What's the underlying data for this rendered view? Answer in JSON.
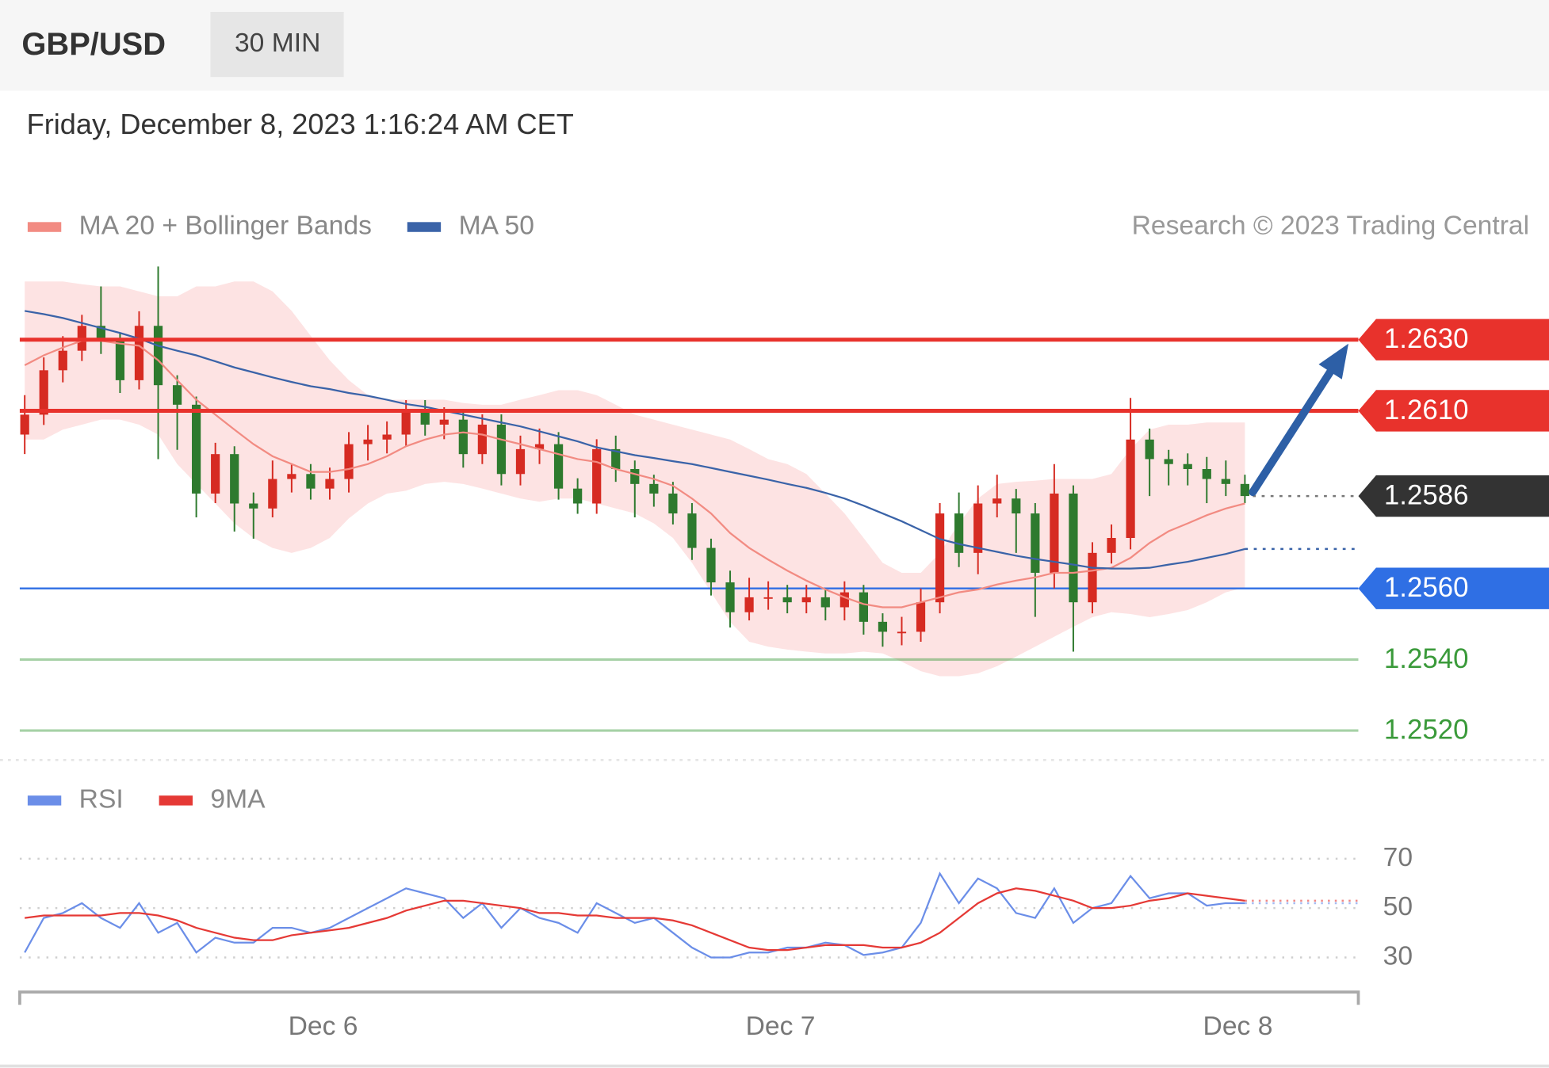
{
  "header": {
    "symbol": "GBP/USD",
    "interval": "30 MIN",
    "timestamp": "Friday, December 8, 2023 1:16:24 AM CET"
  },
  "chart_data": [
    {
      "type": "candlestick",
      "credit": "Research © 2023 Trading Central",
      "xlim": [
        -0.26,
        69.95
      ],
      "ylim": [
        1.25117,
        1.26506
      ],
      "up_color": "#d62b22",
      "down_color": "#2e7a2e",
      "band_color": "#fde3e3",
      "arrow_color": "#2d5fa6",
      "open": [
        1.26033,
        1.26089,
        1.26214,
        1.26269,
        1.26339,
        1.26297,
        1.26186,
        1.26339,
        1.26172,
        1.26117,
        1.25867,
        1.25978,
        1.25839,
        1.25825,
        1.25908,
        1.25922,
        1.25881,
        1.25908,
        1.26006,
        1.26019,
        1.26033,
        1.26103,
        1.26061,
        1.26075,
        1.25978,
        1.26061,
        1.25922,
        1.25992,
        1.26006,
        1.25881,
        1.25839,
        1.25992,
        1.25936,
        1.25894,
        1.25867,
        1.25811,
        1.25714,
        1.25617,
        1.25533,
        1.25575,
        1.25575,
        1.25561,
        1.25575,
        1.25547,
        1.25589,
        1.25506,
        1.25478,
        1.25478,
        1.25561,
        1.25811,
        1.257,
        1.25839,
        1.25853,
        1.25811,
        1.25644,
        1.25867,
        1.25561,
        1.257,
        1.25742,
        1.26019,
        1.25964,
        1.2595,
        1.25936,
        1.25908,
        1.25894
      ],
      "high": [
        1.26144,
        1.2625,
        1.2631,
        1.2637,
        1.2645,
        1.2632,
        1.2638,
        1.26506,
        1.262,
        1.2614,
        1.2601,
        1.26,
        1.2587,
        1.2596,
        1.2595,
        1.2595,
        1.2594,
        1.2604,
        1.2606,
        1.2607,
        1.2613,
        1.2613,
        1.2611,
        1.261,
        1.2609,
        1.2609,
        1.2603,
        1.2605,
        1.2604,
        1.2591,
        1.2602,
        1.2603,
        1.2596,
        1.2592,
        1.259,
        1.2584,
        1.2574,
        1.2565,
        1.2563,
        1.2562,
        1.2561,
        1.2561,
        1.256,
        1.2562,
        1.2561,
        1.2553,
        1.2552,
        1.256,
        1.2584,
        1.2587,
        1.2589,
        1.2592,
        1.2588,
        1.2584,
        1.2595,
        1.2589,
        1.2573,
        1.2578,
        1.26136,
        1.2605,
        1.2599,
        1.2598,
        1.2597,
        1.2596,
        1.2592
      ],
      "low": [
        1.25978,
        1.2606,
        1.2618,
        1.2624,
        1.2626,
        1.2615,
        1.2616,
        1.25964,
        1.2599,
        1.258,
        1.2584,
        1.2576,
        1.2574,
        1.258,
        1.2587,
        1.2585,
        1.2585,
        1.2587,
        1.2596,
        1.2598,
        1.26,
        1.2603,
        1.2602,
        1.2594,
        1.2595,
        1.2589,
        1.2589,
        1.2595,
        1.2585,
        1.2581,
        1.2581,
        1.259,
        1.258,
        1.2583,
        1.2578,
        1.2568,
        1.2558,
        1.2549,
        1.2551,
        1.2554,
        1.2553,
        1.2553,
        1.2551,
        1.2551,
        1.2547,
        1.25436,
        1.2544,
        1.2545,
        1.2553,
        1.2566,
        1.2564,
        1.258,
        1.257,
        1.2552,
        1.256,
        1.25422,
        1.2553,
        1.2567,
        1.2571,
        1.2586,
        1.2589,
        1.2589,
        1.2584,
        1.2586,
        1.2584
      ],
      "close": [
        1.26089,
        1.26214,
        1.26269,
        1.26339,
        1.26297,
        1.26186,
        1.26339,
        1.26172,
        1.26117,
        1.25867,
        1.25978,
        1.25839,
        1.25825,
        1.25908,
        1.25922,
        1.25881,
        1.25908,
        1.26006,
        1.26019,
        1.26033,
        1.26103,
        1.26061,
        1.26075,
        1.25978,
        1.26061,
        1.25922,
        1.25992,
        1.26006,
        1.25881,
        1.25839,
        1.25992,
        1.25936,
        1.25894,
        1.25867,
        1.25811,
        1.25714,
        1.25617,
        1.25533,
        1.25575,
        1.25575,
        1.25561,
        1.25575,
        1.25547,
        1.25589,
        1.25506,
        1.25478,
        1.25478,
        1.25561,
        1.25811,
        1.257,
        1.25839,
        1.25853,
        1.25811,
        1.25644,
        1.25867,
        1.25561,
        1.257,
        1.25742,
        1.26019,
        1.25964,
        1.2595,
        1.25936,
        1.25908,
        1.25894,
        1.2586
      ],
      "series": [
        {
          "name": "MA 20 + Bollinger Bands",
          "color": "#f28b82",
          "values": [
            1.26228,
            1.26256,
            1.26278,
            1.26297,
            1.26297,
            1.26289,
            1.26283,
            1.26242,
            1.26186,
            1.26131,
            1.26089,
            1.26047,
            1.26006,
            1.25972,
            1.2595,
            1.25928,
            1.25928,
            1.25936,
            1.2595,
            1.25972,
            1.26,
            1.26019,
            1.26033,
            1.26039,
            1.26033,
            1.26019,
            1.26006,
            1.25992,
            1.25978,
            1.25964,
            1.25956,
            1.25936,
            1.25922,
            1.25908,
            1.25889,
            1.25853,
            1.25811,
            1.25756,
            1.25714,
            1.25681,
            1.2565,
            1.25622,
            1.25597,
            1.25575,
            1.25556,
            1.25547,
            1.25547,
            1.25561,
            1.25575,
            1.25589,
            1.25597,
            1.25611,
            1.25622,
            1.25631,
            1.25644,
            1.25644,
            1.2565,
            1.25658,
            1.25686,
            1.25728,
            1.25761,
            1.25783,
            1.25806,
            1.25825,
            1.25839
          ],
          "upper": [
            1.26464,
            1.26464,
            1.26464,
            1.26456,
            1.2645,
            1.2645,
            1.26436,
            1.26422,
            1.26422,
            1.2645,
            1.2645,
            1.26464,
            1.26464,
            1.26436,
            1.26381,
            1.26311,
            1.26242,
            1.26186,
            1.26144,
            1.26131,
            1.26131,
            1.26131,
            1.26131,
            1.26122,
            1.26117,
            1.26117,
            1.26131,
            1.26144,
            1.26158,
            1.26158,
            1.26144,
            1.26117,
            1.26089,
            1.26075,
            1.26061,
            1.26047,
            1.26033,
            1.26019,
            1.25992,
            1.25964,
            1.2595,
            1.25922,
            1.25867,
            1.25811,
            1.25742,
            1.25672,
            1.25644,
            1.25644,
            1.257,
            1.25783,
            1.25853,
            1.25894,
            1.259,
            1.25903,
            1.25908,
            1.25908,
            1.25908,
            1.25922,
            1.25992,
            1.26047,
            1.26061,
            1.26061,
            1.26067,
            1.26067,
            1.26067
          ],
          "lower": [
            1.26019,
            1.26019,
            1.26047,
            1.26061,
            1.26075,
            1.26075,
            1.26061,
            1.26033,
            1.2595,
            1.25894,
            1.25839,
            1.25783,
            1.25742,
            1.25714,
            1.257,
            1.25714,
            1.25742,
            1.25797,
            1.25839,
            1.25867,
            1.25875,
            1.25894,
            1.259,
            1.25894,
            1.25881,
            1.25867,
            1.25853,
            1.25844,
            1.25853,
            1.25853,
            1.25839,
            1.25825,
            1.25811,
            1.25783,
            1.25742,
            1.25672,
            1.25589,
            1.25506,
            1.2545,
            1.25436,
            1.25428,
            1.25422,
            1.25417,
            1.25417,
            1.25422,
            1.25417,
            1.25394,
            1.25367,
            1.25353,
            1.25353,
            1.25361,
            1.25381,
            1.25408,
            1.25436,
            1.25464,
            1.25492,
            1.25519,
            1.25533,
            1.25528,
            1.25519,
            1.25528,
            1.25539,
            1.25561,
            1.25589,
            1.25603
          ]
        },
        {
          "name": "MA 50",
          "color": "#3a63a8",
          "projected": true,
          "values": [
            1.26381,
            1.26372,
            1.26361,
            1.26347,
            1.26333,
            1.26319,
            1.26303,
            1.26283,
            1.26269,
            1.26256,
            1.26239,
            1.26222,
            1.26208,
            1.26194,
            1.26181,
            1.26169,
            1.26161,
            1.2615,
            1.26142,
            1.26131,
            1.26119,
            1.26111,
            1.261,
            1.26089,
            1.26078,
            1.26067,
            1.26056,
            1.26042,
            1.26028,
            1.26014,
            1.25997,
            1.25986,
            1.25975,
            1.25967,
            1.25958,
            1.2595,
            1.25939,
            1.25928,
            1.25917,
            1.25906,
            1.25894,
            1.25883,
            1.25869,
            1.25853,
            1.25833,
            1.25811,
            1.25789,
            1.25764,
            1.25739,
            1.25725,
            1.25714,
            1.25703,
            1.25692,
            1.25683,
            1.25675,
            1.25667,
            1.25658,
            1.25656,
            1.25656,
            1.25658,
            1.25667,
            1.25675,
            1.25686,
            1.25697,
            1.25711
          ]
        }
      ],
      "levels": {
        "resistance": {
          "color": "#e8322c",
          "lines": [
            {
              "value": 1.263,
              "label": "1.2630"
            },
            {
              "value": 1.261,
              "label": "1.2610"
            }
          ]
        },
        "last": {
          "color": "#333333",
          "value": 1.2586,
          "label": "1.2586"
        },
        "pivot": {
          "color": "#2f6fe4",
          "value": 1.256,
          "label": "1.2560"
        },
        "support": {
          "color": "#3a9a3a",
          "lines": [
            {
              "value": 1.254,
              "label": "1.2540"
            },
            {
              "value": 1.252,
              "label": "1.2520"
            }
          ]
        }
      }
    },
    {
      "type": "line",
      "xlim": [
        -0.26,
        69.95
      ],
      "ylim": [
        18,
        82
      ],
      "yticks": [
        30,
        50,
        70
      ],
      "grid": true,
      "xticks": [
        {
          "value": 15.65,
          "label": "Dec 6"
        },
        {
          "value": 39.64,
          "label": "Dec 7"
        },
        {
          "value": 63.63,
          "label": "Dec 8"
        }
      ],
      "series": [
        {
          "name": "RSI",
          "color": "#6b8ee8",
          "values": [
            32,
            46,
            48,
            52,
            46,
            42,
            52,
            40,
            44,
            32,
            38,
            36,
            36,
            42,
            42,
            40,
            42,
            46,
            50,
            54,
            58,
            56,
            54,
            46,
            52,
            42,
            50,
            46,
            44,
            40,
            52,
            48,
            44,
            46,
            40,
            34,
            30,
            30,
            32,
            32,
            34,
            34,
            36,
            35,
            31,
            32,
            34,
            44,
            64,
            52,
            62,
            58,
            48,
            46,
            58,
            44,
            50,
            52,
            63,
            54,
            56,
            56,
            51,
            52,
            52
          ]
        },
        {
          "name": "9MA",
          "color": "#e53935",
          "values": [
            46,
            47,
            47,
            47,
            47,
            48,
            48,
            47,
            45,
            42,
            40,
            38,
            37,
            37,
            39,
            40,
            41,
            42,
            44,
            46,
            49,
            51,
            53,
            53,
            52,
            51,
            50,
            48,
            48,
            47,
            47,
            46,
            46,
            46,
            45,
            43,
            40,
            37,
            34,
            33,
            33,
            34,
            35,
            35,
            35,
            34,
            34,
            36,
            40,
            46,
            52,
            56,
            58,
            57,
            55,
            53,
            50,
            50,
            51,
            53,
            54,
            56,
            55,
            54,
            53
          ]
        }
      ]
    }
  ]
}
